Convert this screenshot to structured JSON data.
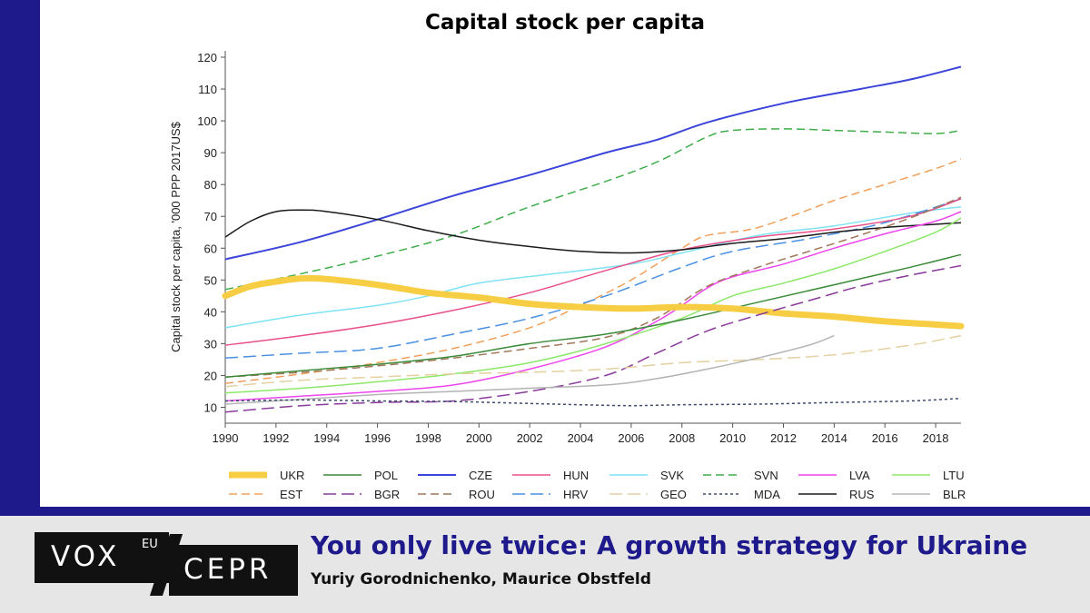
{
  "chart_data": {
    "type": "line",
    "title": "Capital stock per capita",
    "ylabel": "Capital stock per capita, '000 PPP 2017US$",
    "xlabel": "",
    "xlim": [
      1990,
      2019
    ],
    "ylim": [
      5,
      122
    ],
    "xticks": [
      1990,
      1992,
      1994,
      1996,
      1998,
      2000,
      2002,
      2004,
      2006,
      2008,
      2010,
      2012,
      2014,
      2016,
      2018
    ],
    "yticks": [
      10,
      20,
      30,
      40,
      50,
      60,
      70,
      80,
      90,
      100,
      110,
      120
    ],
    "grid": false,
    "legend_position": "bottom",
    "series": [
      {
        "name": "CZE",
        "color": "#3c45d9",
        "dash": "solid",
        "width": 2,
        "x": [
          1990,
          1993,
          1996,
          1999,
          2002,
          2005,
          2007,
          2009,
          2012,
          2015,
          2017,
          2019
        ],
        "y": [
          56.5,
          62,
          69,
          76.5,
          83,
          90,
          94,
          99.5,
          105.5,
          110,
          113,
          117
        ]
      },
      {
        "name": "SVN",
        "color": "#3fae4a",
        "dash": "dashed",
        "width": 1.5,
        "x": [
          1990,
          1993,
          1996,
          1999,
          2002,
          2005,
          2007,
          2009,
          2010,
          2012,
          2014,
          2016,
          2018,
          2019
        ],
        "y": [
          47,
          52,
          57.5,
          64,
          73,
          81,
          87,
          95,
          97,
          97.5,
          97,
          96.5,
          96,
          97
        ]
      },
      {
        "name": "EST",
        "color": "#f0a05a",
        "dash": "dashed",
        "width": 1.5,
        "x": [
          1990,
          1993,
          1996,
          1999,
          2002,
          2004,
          2006,
          2008,
          2009,
          2011,
          2014,
          2016,
          2018,
          2019
        ],
        "y": [
          17.5,
          20.5,
          24,
          28.5,
          35,
          42,
          50,
          60,
          64,
          66.5,
          75,
          80,
          85,
          88
        ]
      },
      {
        "name": "SVK",
        "color": "#7fe2f5",
        "dash": "solid",
        "width": 1.5,
        "x": [
          1990,
          1993,
          1996,
          1998,
          2000,
          2003,
          2006,
          2008,
          2011,
          2014,
          2017,
          2019
        ],
        "y": [
          35,
          39,
          42,
          45,
          49,
          52,
          55,
          58.5,
          64,
          67,
          71,
          73
        ]
      },
      {
        "name": "HRV",
        "color": "#4a90e2",
        "dash": "longdash",
        "width": 1.5,
        "x": [
          1990,
          1993,
          1996,
          1999,
          2002,
          2005,
          2008,
          2010,
          2013,
          2016,
          2019
        ],
        "y": [
          25.5,
          27,
          28.5,
          33,
          38,
          45,
          54,
          59,
          63,
          68,
          75.5
        ]
      },
      {
        "name": "HUN",
        "color": "#e8508a",
        "dash": "solid",
        "width": 1.5,
        "x": [
          1990,
          1993,
          1996,
          1999,
          2002,
          2005,
          2008,
          2011,
          2014,
          2017,
          2019
        ],
        "y": [
          29.5,
          32.5,
          36,
          40.5,
          46,
          53,
          59.5,
          63.5,
          66,
          70,
          75.5
        ]
      },
      {
        "name": "RUS",
        "color": "#1a1a1a",
        "dash": "solid",
        "width": 1.5,
        "x": [
          1990,
          1991,
          1992,
          1993,
          1994,
          1996,
          1998,
          2000,
          2002,
          2004,
          2006,
          2008,
          2010,
          2012,
          2014,
          2016,
          2019
        ],
        "y": [
          63.5,
          68.5,
          71.5,
          72,
          71.5,
          69,
          65.5,
          62.5,
          60.5,
          59,
          58.5,
          59.5,
          61.5,
          63,
          65,
          66.5,
          68
        ]
      },
      {
        "name": "LVA",
        "color": "#ee44ee",
        "dash": "solid",
        "width": 1.5,
        "x": [
          1990,
          1993,
          1996,
          1999,
          2002,
          2005,
          2007,
          2008,
          2009,
          2010,
          2012,
          2014,
          2016,
          2018,
          2019
        ],
        "y": [
          12,
          13.5,
          15,
          17,
          22,
          29,
          37,
          42,
          47.5,
          51,
          55,
          60,
          64.5,
          68.5,
          71.5
        ]
      },
      {
        "name": "LTU",
        "color": "#8de86a",
        "dash": "solid",
        "width": 1.5,
        "x": [
          1990,
          1993,
          1996,
          1999,
          2002,
          2005,
          2008,
          2010,
          2012,
          2014,
          2016,
          2018,
          2019
        ],
        "y": [
          14.5,
          16,
          18,
          20.5,
          24,
          30,
          38,
          45,
          49,
          53.5,
          59,
          65,
          69.5
        ]
      },
      {
        "name": "ROU",
        "color": "#a0765a",
        "dash": "dashed",
        "width": 1.5,
        "x": [
          1990,
          1993,
          1996,
          1999,
          2002,
          2005,
          2007,
          2009,
          2011,
          2013,
          2015,
          2017,
          2019
        ],
        "y": [
          19.5,
          21,
          23,
          25.5,
          28.5,
          32,
          38,
          48,
          54,
          59,
          64,
          69.5,
          76
        ]
      },
      {
        "name": "POL",
        "color": "#3a8a3a",
        "dash": "solid",
        "width": 1.5,
        "x": [
          1990,
          1993,
          1996,
          1999,
          2002,
          2005,
          2008,
          2011,
          2014,
          2017,
          2019
        ],
        "y": [
          19.5,
          21.5,
          23.5,
          26,
          30,
          33,
          37.5,
          43,
          48.5,
          54,
          58
        ]
      },
      {
        "name": "UKR",
        "color": "#f7cd43",
        "dash": "solid",
        "width": 7,
        "x": [
          1990,
          1991,
          1992,
          1993,
          1994,
          1996,
          1998,
          2000,
          2002,
          2004,
          2006,
          2008,
          2010,
          2012,
          2014,
          2016,
          2018,
          2019
        ],
        "y": [
          45,
          48,
          49.5,
          50.5,
          50.3,
          48.5,
          46,
          44.5,
          42.5,
          41.5,
          41,
          41.5,
          41,
          39.5,
          38.5,
          37,
          36,
          35.5
        ]
      },
      {
        "name": "BGR",
        "color": "#8a3a9a",
        "dash": "longdash",
        "width": 1.5,
        "x": [
          1990,
          1993,
          1996,
          1999,
          2002,
          2005,
          2007,
          2009,
          2011,
          2013,
          2015,
          2017,
          2019
        ],
        "y": [
          8.5,
          10.5,
          11.5,
          12,
          15,
          20,
          27,
          34,
          39,
          43.5,
          48,
          51.5,
          54.5
        ]
      },
      {
        "name": "GEO",
        "color": "#e4d0a0",
        "dash": "longdash",
        "width": 1.5,
        "x": [
          1990,
          1993,
          1996,
          1999,
          2002,
          2005,
          2008,
          2011,
          2014,
          2017,
          2019
        ],
        "y": [
          16.5,
          18.5,
          19.5,
          20.5,
          21,
          22,
          24,
          25,
          26.5,
          29.5,
          32.5
        ]
      },
      {
        "name": "BLR",
        "color": "#b4b4b4",
        "dash": "solid",
        "width": 1.5,
        "x": [
          1990,
          1993,
          1996,
          1999,
          2002,
          2005,
          2007,
          2009,
          2011,
          2013,
          2014
        ],
        "y": [
          11,
          12.5,
          14,
          15,
          16,
          17,
          19,
          22,
          25.5,
          29.5,
          32.5
        ]
      },
      {
        "name": "MDA",
        "color": "#3c4a6a",
        "dash": "dotted",
        "width": 1.5,
        "x": [
          1990,
          1993,
          1996,
          1999,
          2002,
          2004,
          2006,
          2008,
          2011,
          2014,
          2017,
          2019
        ],
        "y": [
          12,
          12.3,
          12,
          11.8,
          11.2,
          10.8,
          10.5,
          10.8,
          11,
          11.5,
          12,
          12.8
        ]
      }
    ],
    "legend_rows": [
      [
        "UKR",
        "POL",
        "CZE",
        "HUN",
        "SVK",
        "SVN",
        "LVA",
        "LTU"
      ],
      [
        "EST",
        "BGR",
        "ROU",
        "HRV",
        "GEO",
        "MDA",
        "RUS",
        "BLR"
      ]
    ]
  },
  "footer": {
    "logo_vox": "VOX",
    "logo_eu": "EU",
    "logo_cepr": "CEPR",
    "title": "You only live twice: A growth strategy for Ukraine",
    "authors": "Yuriy Gorodnichenko, Maurice Obstfeld"
  }
}
